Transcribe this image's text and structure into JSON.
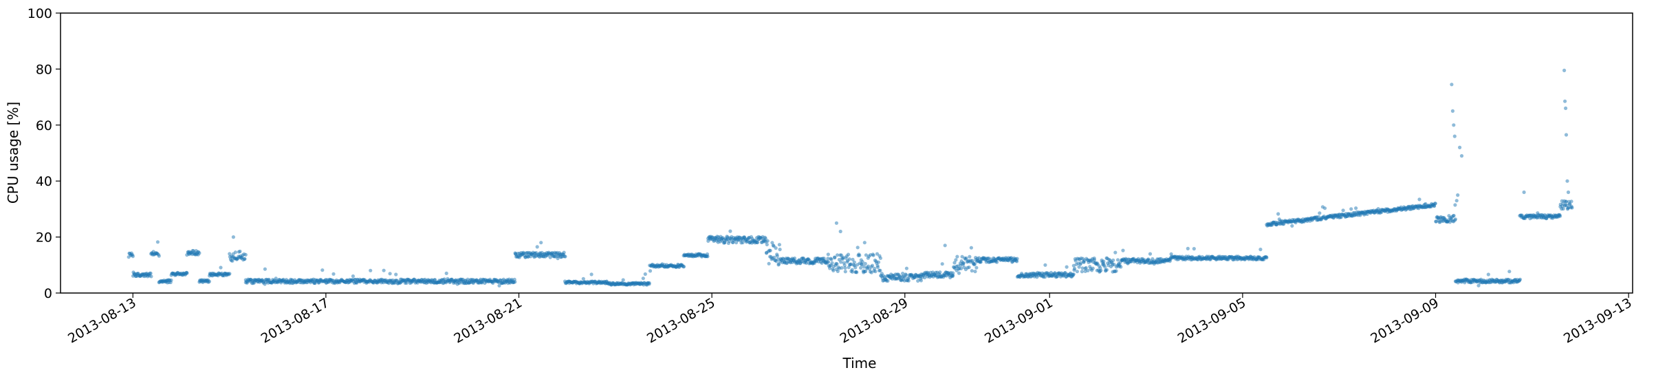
{
  "chart_data": {
    "type": "scatter",
    "title": "",
    "xlabel": "Time",
    "ylabel": "CPU usage [%]",
    "xlim": [
      "2013-08-11T12:00",
      "2013-09-13T02:00"
    ],
    "ylim": [
      0,
      100
    ],
    "yticks": [
      0,
      20,
      40,
      60,
      80,
      100
    ],
    "xticks": [
      "2013-08-13",
      "2013-08-17",
      "2013-08-21",
      "2013-08-25",
      "2013-08-29",
      "2013-09-01",
      "2013-09-05",
      "2013-09-09",
      "2013-09-13"
    ],
    "grid": false,
    "legend": "none",
    "marker_color": "#1f77b4",
    "segments": [
      {
        "start": "2013-08-12T22:00",
        "end": "2013-08-13T00:00",
        "value": 13.5,
        "spread": 0.8
      },
      {
        "start": "2013-08-13T00:00",
        "end": "2013-08-13T09:00",
        "value": 6.5,
        "spread": 0.6
      },
      {
        "start": "2013-08-13T09:00",
        "end": "2013-08-13T13:00",
        "value": 14.0,
        "spread": 0.8
      },
      {
        "start": "2013-08-13T13:00",
        "end": "2013-08-13T19:00",
        "value": 4.2,
        "spread": 0.5
      },
      {
        "start": "2013-08-13T19:00",
        "end": "2013-08-14T03:00",
        "value": 6.8,
        "spread": 0.5
      },
      {
        "start": "2013-08-14T03:00",
        "end": "2013-08-14T09:00",
        "value": 14.3,
        "spread": 0.8
      },
      {
        "start": "2013-08-14T09:00",
        "end": "2013-08-14T14:00",
        "value": 4.3,
        "spread": 0.5
      },
      {
        "start": "2013-08-14T14:00",
        "end": "2013-08-15T00:00",
        "value": 6.6,
        "spread": 0.5
      },
      {
        "start": "2013-08-15T00:00",
        "end": "2013-08-15T08:00",
        "value": 13.0,
        "spread": 2.0
      },
      {
        "start": "2013-08-15T08:00",
        "end": "2013-08-20T22:00",
        "value": 4.2,
        "spread": 0.7
      },
      {
        "start": "2013-08-20T22:00",
        "end": "2013-08-21T23:00",
        "value": 13.6,
        "spread": 0.9
      },
      {
        "start": "2013-08-21T23:00",
        "end": "2013-08-22T20:00",
        "value": 3.8,
        "spread": 0.4
      },
      {
        "start": "2013-08-22T20:00",
        "end": "2013-08-23T17:00",
        "value": 3.3,
        "spread": 0.4
      },
      {
        "start": "2013-08-23T17:00",
        "end": "2013-08-24T10:00",
        "value": 9.7,
        "spread": 0.5
      },
      {
        "start": "2013-08-24T10:00",
        "end": "2013-08-24T22:00",
        "value": 13.5,
        "spread": 0.5
      },
      {
        "start": "2013-08-24T22:00",
        "end": "2013-08-26T03:00",
        "value": 19.0,
        "spread": 1.2
      },
      {
        "start": "2013-08-26T03:00",
        "end": "2013-08-26T10:00",
        "value": 14.0,
        "spread": 4.0
      },
      {
        "start": "2013-08-26T10:00",
        "end": "2013-08-27T10:00",
        "value": 11.5,
        "spread": 1.0
      },
      {
        "start": "2013-08-27T10:00",
        "end": "2013-08-28T12:00",
        "value": 10.5,
        "spread": 3.5
      },
      {
        "start": "2013-08-28T12:00",
        "end": "2013-08-29T08:00",
        "value": 5.5,
        "spread": 1.2
      },
      {
        "start": "2013-08-29T08:00",
        "end": "2013-08-30T00:00",
        "value": 6.5,
        "spread": 1.0
      },
      {
        "start": "2013-08-30T00:00",
        "end": "2013-08-30T12:00",
        "value": 10.0,
        "spread": 3.0
      },
      {
        "start": "2013-08-30T12:00",
        "end": "2013-08-31T08:00",
        "value": 11.8,
        "spread": 0.8
      },
      {
        "start": "2013-08-31T08:00",
        "end": "2013-09-01T12:00",
        "value": 6.5,
        "spread": 0.8
      },
      {
        "start": "2013-09-01T12:00",
        "end": "2013-09-02T12:00",
        "value": 10.0,
        "spread": 2.5
      },
      {
        "start": "2013-09-02T12:00",
        "end": "2013-09-03T12:00",
        "value": 11.5,
        "spread": 0.8
      },
      {
        "start": "2013-09-03T12:00",
        "end": "2013-09-05T12:00",
        "value": 12.5,
        "spread": 0.6
      },
      {
        "start": "2013-09-05T12:00",
        "end": "2013-09-09T00:00",
        "value": 24.5,
        "spread": 0.6,
        "trend": 7.0
      },
      {
        "start": "2013-09-09T00:00",
        "end": "2013-09-09T10:00",
        "value": 26.5,
        "spread": 1.2
      },
      {
        "start": "2013-09-09T10:00",
        "end": "2013-09-10T18:00",
        "value": 4.3,
        "spread": 0.6
      },
      {
        "start": "2013-09-10T18:00",
        "end": "2013-09-11T14:00",
        "value": 27.3,
        "spread": 0.7
      },
      {
        "start": "2013-09-11T14:00",
        "end": "2013-09-11T20:00",
        "value": 31.5,
        "spread": 1.5
      }
    ],
    "outliers": [
      {
        "t": "2013-08-15T02:00",
        "v": 20
      },
      {
        "t": "2013-08-21T11:00",
        "v": 18
      },
      {
        "t": "2013-08-27T14:00",
        "v": 25
      },
      {
        "t": "2013-08-27T16:00",
        "v": 22
      },
      {
        "t": "2013-08-28T04:00",
        "v": 18
      },
      {
        "t": "2013-08-29T20:00",
        "v": 17
      },
      {
        "t": "2013-09-07T06:00",
        "v": 30
      },
      {
        "t": "2013-09-09T08:00",
        "v": 74.5
      },
      {
        "t": "2013-09-09T08:30",
        "v": 65
      },
      {
        "t": "2013-09-09T09:00",
        "v": 60
      },
      {
        "t": "2013-09-09T09:30",
        "v": 56
      },
      {
        "t": "2013-09-09T12:00",
        "v": 52
      },
      {
        "t": "2013-09-09T13:00",
        "v": 49
      },
      {
        "t": "2013-09-09T11:00",
        "v": 35
      },
      {
        "t": "2013-09-09T10:30",
        "v": 33
      },
      {
        "t": "2013-09-10T20:00",
        "v": 36
      },
      {
        "t": "2013-09-11T16:00",
        "v": 79.5
      },
      {
        "t": "2013-09-11T16:20",
        "v": 68.5
      },
      {
        "t": "2013-09-11T16:40",
        "v": 66
      },
      {
        "t": "2013-09-11T17:00",
        "v": 56.5
      },
      {
        "t": "2013-09-11T17:30",
        "v": 40
      },
      {
        "t": "2013-09-11T18:00",
        "v": 36
      }
    ]
  }
}
